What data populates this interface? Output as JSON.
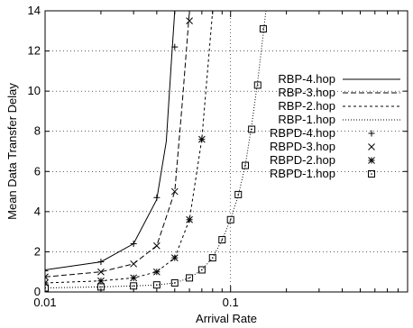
{
  "chart_data": {
    "type": "line",
    "xlabel": "Arrival Rate",
    "ylabel": "Mean Data Transfer Delay",
    "x_scale": "log",
    "xlim": [
      0.01,
      0.9
    ],
    "ylim": [
      0,
      14
    ],
    "x_ticks": [
      {
        "value": 0.01,
        "label": "0.01"
      },
      {
        "value": 0.1,
        "label": "0.1"
      }
    ],
    "y_ticks": [
      {
        "value": 0,
        "label": "0"
      },
      {
        "value": 2,
        "label": "2"
      },
      {
        "value": 4,
        "label": "4"
      },
      {
        "value": 6,
        "label": "6"
      },
      {
        "value": 8,
        "label": "8"
      },
      {
        "value": 10,
        "label": "10"
      },
      {
        "value": 12,
        "label": "12"
      },
      {
        "value": 14,
        "label": "14"
      }
    ],
    "grid": true,
    "legend_position": "top-right",
    "series": [
      {
        "name": "RBP-4.hop",
        "kind": "line",
        "dash": "solid",
        "points": [
          [
            0.01,
            1.1
          ],
          [
            0.02,
            1.5
          ],
          [
            0.03,
            2.4
          ],
          [
            0.04,
            4.6
          ],
          [
            0.045,
            7.5
          ],
          [
            0.048,
            11.5
          ],
          [
            0.05,
            14.0
          ]
        ]
      },
      {
        "name": "RBP-3.hop",
        "kind": "line",
        "dash": "dashed",
        "points": [
          [
            0.01,
            0.75
          ],
          [
            0.02,
            1.0
          ],
          [
            0.03,
            1.4
          ],
          [
            0.04,
            2.3
          ],
          [
            0.05,
            5.0
          ],
          [
            0.055,
            9.5
          ],
          [
            0.06,
            14.0
          ]
        ]
      },
      {
        "name": "RBP-2.hop",
        "kind": "line",
        "dash": "dotted",
        "points": [
          [
            0.01,
            0.45
          ],
          [
            0.02,
            0.55
          ],
          [
            0.03,
            0.7
          ],
          [
            0.04,
            1.0
          ],
          [
            0.05,
            1.7
          ],
          [
            0.06,
            3.6
          ],
          [
            0.07,
            7.6
          ],
          [
            0.08,
            14.0
          ]
        ]
      },
      {
        "name": "RBP-1.hop",
        "kind": "line",
        "dash": "fine-dotted",
        "points": [
          [
            0.01,
            0.2
          ],
          [
            0.02,
            0.25
          ],
          [
            0.03,
            0.3
          ],
          [
            0.04,
            0.35
          ],
          [
            0.05,
            0.45
          ],
          [
            0.06,
            0.7
          ],
          [
            0.07,
            1.1
          ],
          [
            0.08,
            1.7
          ],
          [
            0.09,
            2.6
          ],
          [
            0.1,
            3.6
          ],
          [
            0.11,
            4.8
          ],
          [
            0.12,
            6.3
          ],
          [
            0.13,
            8.3
          ],
          [
            0.14,
            10.5
          ],
          [
            0.155,
            14.0
          ]
        ]
      },
      {
        "name": "RBPD-4.hop",
        "kind": "marker",
        "marker": "plus",
        "points": [
          [
            0.01,
            1.05
          ],
          [
            0.02,
            1.5
          ],
          [
            0.03,
            2.4
          ],
          [
            0.04,
            4.7
          ],
          [
            0.05,
            12.2
          ]
        ]
      },
      {
        "name": "RBPD-3.hop",
        "kind": "marker",
        "marker": "cross",
        "points": [
          [
            0.01,
            0.75
          ],
          [
            0.02,
            1.0
          ],
          [
            0.03,
            1.4
          ],
          [
            0.04,
            2.3
          ],
          [
            0.05,
            5.0
          ],
          [
            0.06,
            13.5
          ]
        ]
      },
      {
        "name": "RBPD-2.hop",
        "kind": "marker",
        "marker": "star",
        "points": [
          [
            0.01,
            0.45
          ],
          [
            0.02,
            0.55
          ],
          [
            0.03,
            0.7
          ],
          [
            0.04,
            1.0
          ],
          [
            0.05,
            1.7
          ],
          [
            0.06,
            3.6
          ],
          [
            0.07,
            7.6
          ]
        ]
      },
      {
        "name": "RBPD-1.hop",
        "kind": "marker",
        "marker": "box",
        "points": [
          [
            0.01,
            0.2
          ],
          [
            0.02,
            0.25
          ],
          [
            0.03,
            0.3
          ],
          [
            0.04,
            0.35
          ],
          [
            0.05,
            0.45
          ],
          [
            0.06,
            0.7
          ],
          [
            0.07,
            1.1
          ],
          [
            0.08,
            1.7
          ],
          [
            0.09,
            2.6
          ],
          [
            0.1,
            3.6
          ],
          [
            0.11,
            4.85
          ],
          [
            0.12,
            6.3
          ],
          [
            0.13,
            8.1
          ],
          [
            0.14,
            10.3
          ],
          [
            0.15,
            13.1
          ]
        ]
      }
    ]
  }
}
